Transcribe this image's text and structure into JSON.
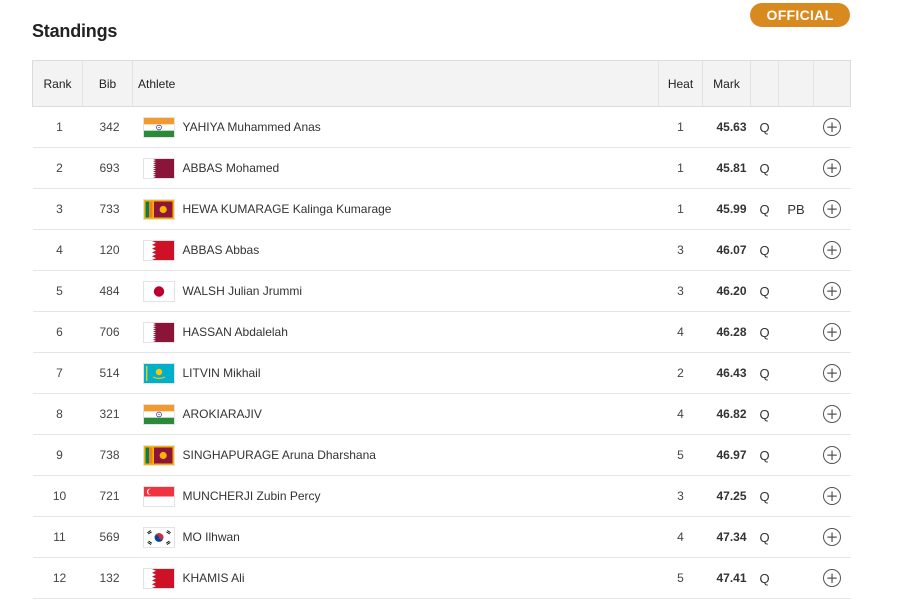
{
  "header": {
    "title": "Standings",
    "status_badge": "OFFICIAL",
    "badge_color": "#d98a1f"
  },
  "table": {
    "columns": {
      "rank": "Rank",
      "bib": "Bib",
      "athlete": "Athlete",
      "heat": "Heat",
      "mark": "Mark"
    },
    "rows": [
      {
        "rank": "1",
        "bib": "342",
        "athlete": "YAHIYA Muhammed Anas",
        "heat": "1",
        "mark": "45.63",
        "qual": "Q",
        "note": "",
        "flag": "india"
      },
      {
        "rank": "2",
        "bib": "693",
        "athlete": "ABBAS Mohamed",
        "heat": "1",
        "mark": "45.81",
        "qual": "Q",
        "note": "",
        "flag": "qatar"
      },
      {
        "rank": "3",
        "bib": "733",
        "athlete": "HEWA KUMARAGE Kalinga Kumarage",
        "heat": "1",
        "mark": "45.99",
        "qual": "Q",
        "note": "PB",
        "flag": "sri-lanka"
      },
      {
        "rank": "4",
        "bib": "120",
        "athlete": "ABBAS Abbas",
        "heat": "3",
        "mark": "46.07",
        "qual": "Q",
        "note": "",
        "flag": "bahrain"
      },
      {
        "rank": "5",
        "bib": "484",
        "athlete": "WALSH Julian Jrummi",
        "heat": "3",
        "mark": "46.20",
        "qual": "Q",
        "note": "",
        "flag": "japan"
      },
      {
        "rank": "6",
        "bib": "706",
        "athlete": "HASSAN Abdalelah",
        "heat": "4",
        "mark": "46.28",
        "qual": "Q",
        "note": "",
        "flag": "qatar"
      },
      {
        "rank": "7",
        "bib": "514",
        "athlete": "LITVIN Mikhail",
        "heat": "2",
        "mark": "46.43",
        "qual": "Q",
        "note": "",
        "flag": "kazakhstan"
      },
      {
        "rank": "8",
        "bib": "321",
        "athlete": "AROKIARAJIV",
        "heat": "4",
        "mark": "46.82",
        "qual": "Q",
        "note": "",
        "flag": "india"
      },
      {
        "rank": "9",
        "bib": "738",
        "athlete": "SINGHAPURAGE Aruna Dharshana",
        "heat": "5",
        "mark": "46.97",
        "qual": "Q",
        "note": "",
        "flag": "sri-lanka"
      },
      {
        "rank": "10",
        "bib": "721",
        "athlete": "MUNCHERJI Zubin Percy",
        "heat": "3",
        "mark": "47.25",
        "qual": "Q",
        "note": "",
        "flag": "singapore"
      },
      {
        "rank": "11",
        "bib": "569",
        "athlete": "MO Ilhwan",
        "heat": "4",
        "mark": "47.34",
        "qual": "Q",
        "note": "",
        "flag": "south-korea"
      },
      {
        "rank": "12",
        "bib": "132",
        "athlete": "KHAMIS Ali",
        "heat": "5",
        "mark": "47.41",
        "qual": "Q",
        "note": "",
        "flag": "bahrain"
      }
    ],
    "row_action_icon": "plus-circle-icon"
  }
}
